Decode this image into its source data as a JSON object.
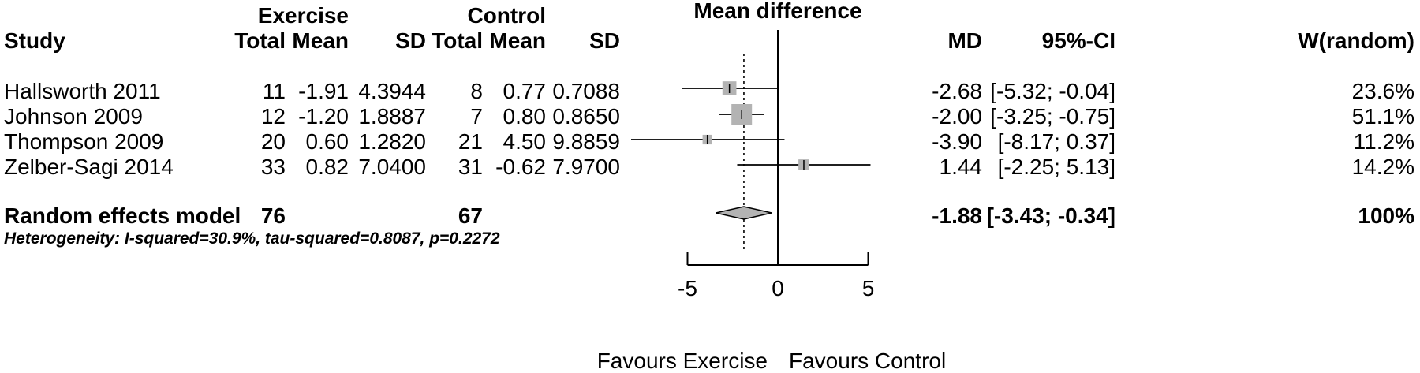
{
  "chart_data": {
    "type": "forest",
    "title": "Mean difference",
    "group_headers": {
      "exercise": "Exercise",
      "control": "Control"
    },
    "columns": {
      "study": "Study",
      "total": "Total",
      "mean": "Mean",
      "sd": "SD",
      "md": "MD",
      "ci": "95%-CI",
      "weight": "W(random)"
    },
    "studies": [
      {
        "study": "Hallsworth 2011",
        "ex_total": "11",
        "ex_mean": "-1.91",
        "ex_sd": "4.3944",
        "ctl_total": "8",
        "ctl_mean": "0.77",
        "ctl_sd": "0.7088",
        "md_label": "-2.68",
        "ci_label": "[-5.32; -0.04]",
        "weight_label": "23.6%",
        "md": -2.68,
        "ci_low": -5.32,
        "ci_high": -0.04,
        "weight": 23.6
      },
      {
        "study": "Johnson 2009",
        "ex_total": "12",
        "ex_mean": "-1.20",
        "ex_sd": "1.8887",
        "ctl_total": "7",
        "ctl_mean": "0.80",
        "ctl_sd": "0.8650",
        "md_label": "-2.00",
        "ci_label": "[-3.25; -0.75]",
        "weight_label": "51.1%",
        "md": -2.0,
        "ci_low": -3.25,
        "ci_high": -0.75,
        "weight": 51.1
      },
      {
        "study": "Thompson 2009",
        "ex_total": "20",
        "ex_mean": "0.60",
        "ex_sd": "1.2820",
        "ctl_total": "21",
        "ctl_mean": "4.50",
        "ctl_sd": "9.8859",
        "md_label": "-3.90",
        "ci_label": "[-8.17; 0.37]",
        "weight_label": "11.2%",
        "md": -3.9,
        "ci_low": -8.17,
        "ci_high": 0.37,
        "weight": 11.2
      },
      {
        "study": "Zelber-Sagi 2014",
        "ex_total": "33",
        "ex_mean": "0.82",
        "ex_sd": "7.0400",
        "ctl_total": "31",
        "ctl_mean": "-0.62",
        "ctl_sd": "7.9700",
        "md_label": "1.44",
        "ci_label": "[-2.25; 5.13]",
        "weight_label": "14.2%",
        "md": 1.44,
        "ci_low": -2.25,
        "ci_high": 5.13,
        "weight": 14.2
      }
    ],
    "pooled": {
      "label": "Random effects model",
      "ex_total": "76",
      "ctl_total": "67",
      "md_label": "-1.88",
      "ci_label": "[-3.43; -0.34]",
      "weight_label": "100%",
      "md": -1.88,
      "ci_low": -3.43,
      "ci_high": -0.34
    },
    "heterogeneity": "Heterogeneity: I-squared=30.9%, tau-squared=0.8087, p=0.2272",
    "x_axis": {
      "range": [
        -5,
        5
      ],
      "ticks": [
        -5,
        0,
        5
      ],
      "tick_labels": [
        "-5",
        "0",
        "5"
      ],
      "left_label": "Favours Exercise",
      "right_label": "Favours Control"
    },
    "colors": {
      "square": "#b3b3b3",
      "diamond": "#b3b3b3",
      "line": "#000000"
    }
  }
}
